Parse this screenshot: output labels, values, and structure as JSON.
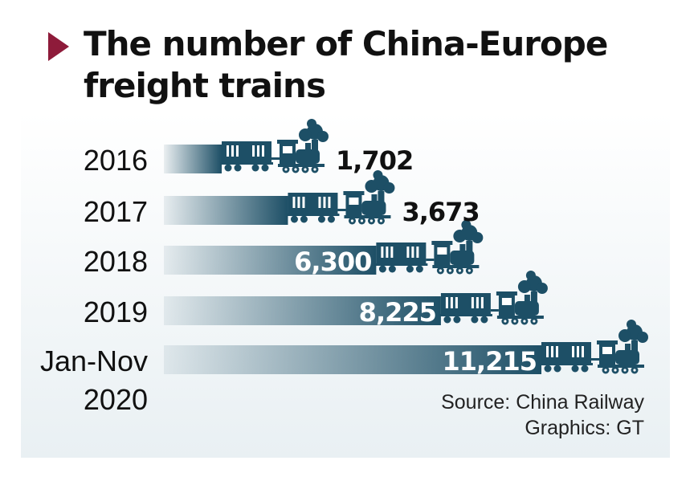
{
  "title_lines": [
    "The number of China-Europe",
    "freight trains"
  ],
  "source": "Source: China Railway",
  "credit": "Graphics: GT",
  "colors": {
    "bar": "#1d4f66",
    "accent": "#8e1b3a",
    "label_light": "#ffffff",
    "label_dark": "#111111"
  },
  "icons": {
    "bar_end": "steam-train-icon"
  },
  "chart_data": {
    "type": "bar",
    "orientation": "horizontal",
    "title": "The number of China-Europe freight trains",
    "categories": [
      "2016",
      "2017",
      "2018",
      "2019",
      "Jan-Nov 2020"
    ],
    "category_lines": [
      [
        "2016"
      ],
      [
        "2017"
      ],
      [
        "2018"
      ],
      [
        "2019"
      ],
      [
        "Jan-Nov",
        "2020"
      ]
    ],
    "values": [
      1702,
      3673,
      6300,
      8225,
      11215
    ],
    "value_labels": [
      "1,702",
      "3,673",
      "6,300",
      "8,225",
      "11,215"
    ],
    "xlim": [
      0,
      11215
    ],
    "grid": false,
    "legend": "none"
  }
}
